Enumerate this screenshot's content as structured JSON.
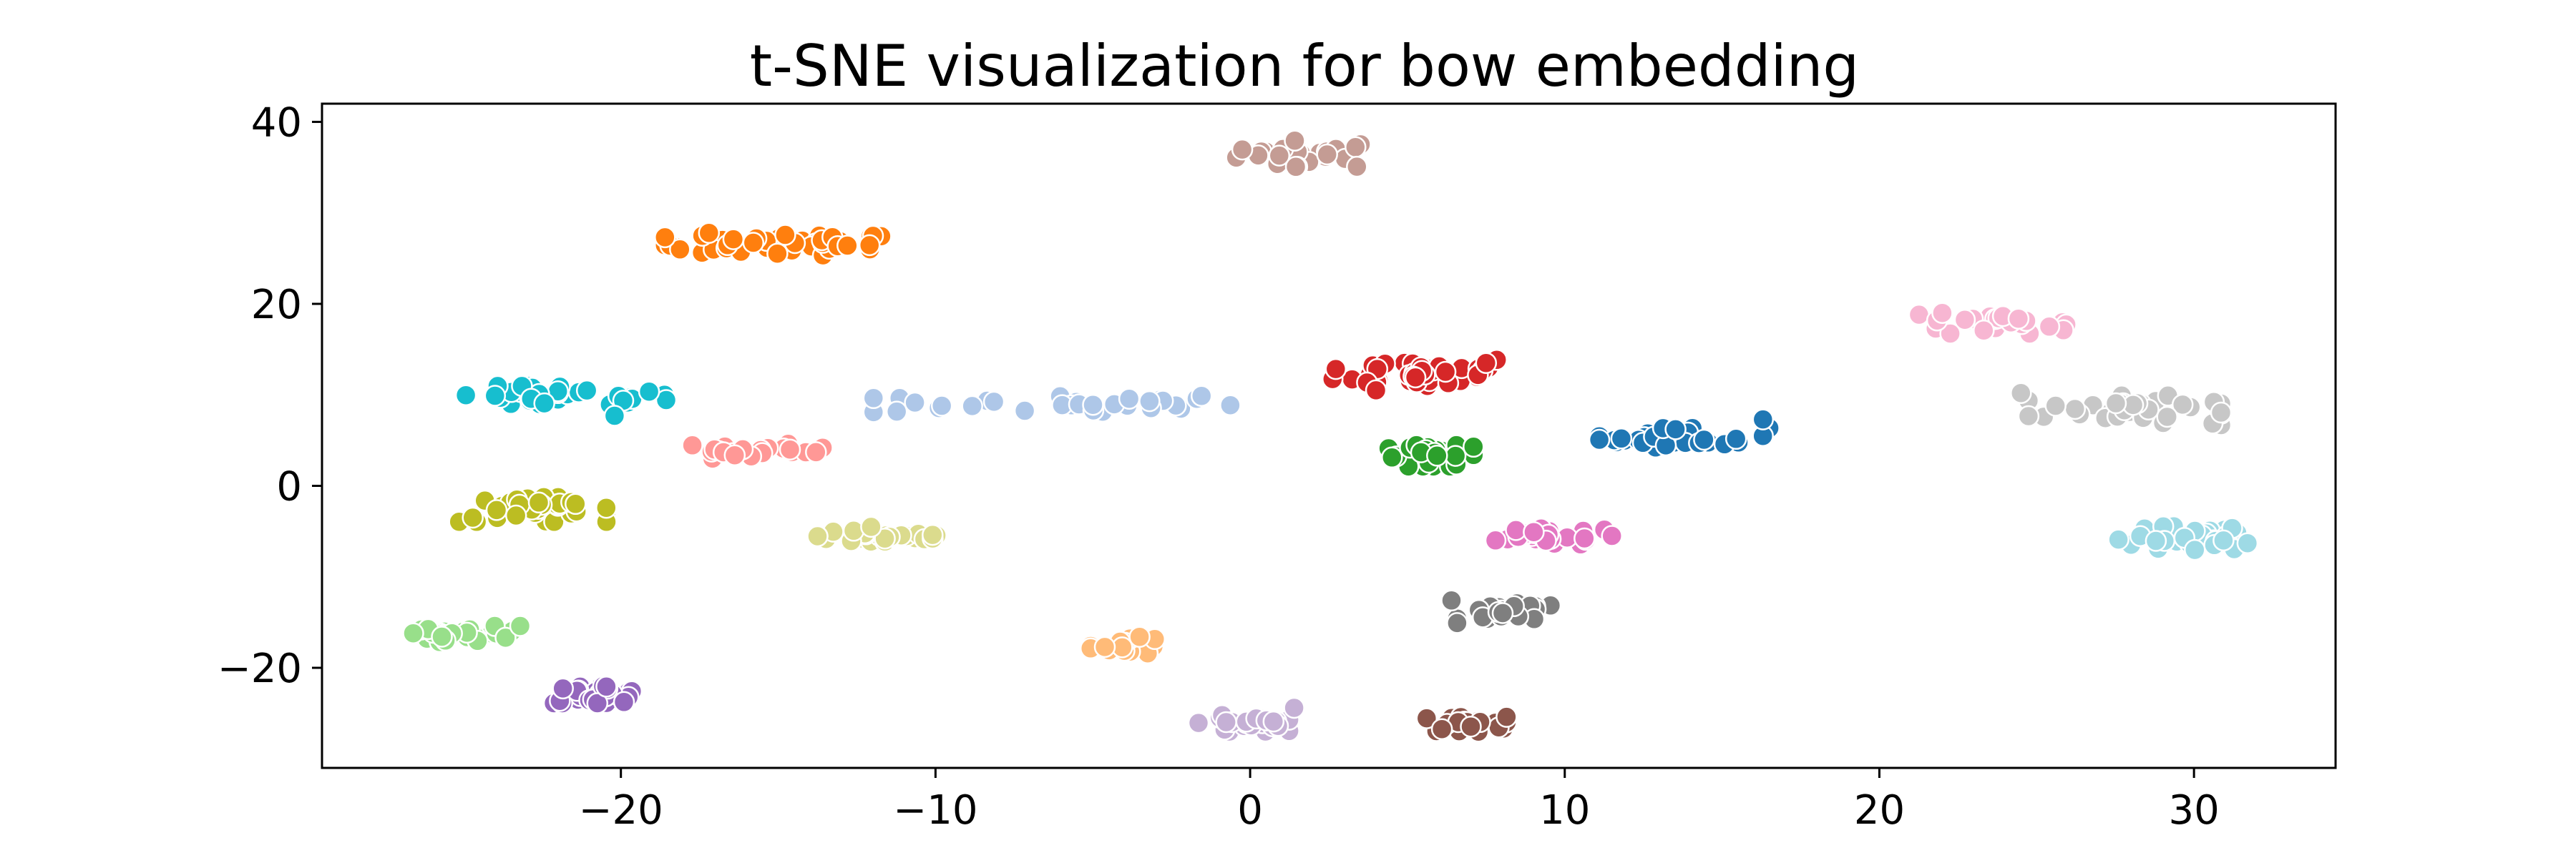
{
  "chart_data": {
    "type": "scatter",
    "title": "t-SNE visualization for bow embedding",
    "xlabel": "",
    "ylabel": "",
    "xlim": [
      -29.5,
      34.5
    ],
    "ylim": [
      -31,
      42
    ],
    "xticks": [
      -20,
      -10,
      0,
      10,
      20,
      30
    ],
    "xtick_labels": [
      "−20",
      "−10",
      "0",
      "10",
      "20",
      "30"
    ],
    "yticks": [
      -20,
      0,
      20,
      40
    ],
    "ytick_labels": [
      "−20",
      "0",
      "20",
      "40"
    ],
    "grid": false,
    "legend": "none",
    "clusters": [
      {
        "color": "#c49c94",
        "cx": 1.9,
        "cy": 36.5,
        "sx": 2.6,
        "sy": 1.6,
        "n": 26
      },
      {
        "color": "#ff7f0e",
        "cx": -15.0,
        "cy": 26.5,
        "sx": 4.0,
        "sy": 1.3,
        "n": 40
      },
      {
        "color": "#17becf",
        "cx": -21.8,
        "cy": 9.8,
        "sx": 3.6,
        "sy": 1.3,
        "n": 34
      },
      {
        "color": "#aec7e8",
        "cx": -6.3,
        "cy": 9.0,
        "sx": 6.3,
        "sy": 1.2,
        "n": 30
      },
      {
        "color": "#d62728",
        "cx": 5.5,
        "cy": 12.5,
        "sx": 3.2,
        "sy": 1.8,
        "n": 40
      },
      {
        "color": "#f7b6d2",
        "cx": 23.6,
        "cy": 18.0,
        "sx": 2.6,
        "sy": 1.4,
        "n": 22
      },
      {
        "color": "#c7c7c7",
        "cx": 27.8,
        "cy": 8.3,
        "sx": 3.4,
        "sy": 1.8,
        "n": 36
      },
      {
        "color": "#1f77b4",
        "cx": 13.8,
        "cy": 5.3,
        "sx": 3.0,
        "sy": 1.2,
        "n": 30
      },
      {
        "color": "#ff9896",
        "cx": -15.8,
        "cy": 3.8,
        "sx": 2.5,
        "sy": 0.9,
        "n": 20
      },
      {
        "color": "#2ca02c",
        "cx": 5.8,
        "cy": 3.3,
        "sx": 1.6,
        "sy": 1.3,
        "n": 26
      },
      {
        "color": "#bcbd22",
        "cx": -22.8,
        "cy": -2.6,
        "sx": 2.6,
        "sy": 1.5,
        "n": 34
      },
      {
        "color": "#dbdb8d",
        "cx": -11.5,
        "cy": -5.5,
        "sx": 2.5,
        "sy": 1.1,
        "n": 30
      },
      {
        "color": "#e377c2",
        "cx": 9.5,
        "cy": -5.6,
        "sx": 2.2,
        "sy": 1.0,
        "n": 24
      },
      {
        "color": "#9edae5",
        "cx": 29.8,
        "cy": -5.8,
        "sx": 2.0,
        "sy": 1.5,
        "n": 34
      },
      {
        "color": "#7f7f7f",
        "cx": 8.2,
        "cy": -14.0,
        "sx": 1.8,
        "sy": 1.2,
        "n": 24
      },
      {
        "color": "#98df8a",
        "cx": -24.9,
        "cy": -16.3,
        "sx": 1.6,
        "sy": 1.0,
        "n": 24
      },
      {
        "color": "#ffbb78",
        "cx": -3.9,
        "cy": -17.5,
        "sx": 1.3,
        "sy": 1.0,
        "n": 20
      },
      {
        "color": "#9467bd",
        "cx": -20.8,
        "cy": -22.9,
        "sx": 1.6,
        "sy": 1.1,
        "n": 28
      },
      {
        "color": "#c5b0d5",
        "cx": -0.2,
        "cy": -26.1,
        "sx": 1.6,
        "sy": 1.0,
        "n": 24
      },
      {
        "color": "#8c564b",
        "cx": 6.8,
        "cy": -26.2,
        "sx": 1.5,
        "sy": 0.9,
        "n": 26
      }
    ],
    "outliers": [
      {
        "color": "#1f77b4",
        "x": 16.3,
        "y": 7.3
      },
      {
        "color": "#1f77b4",
        "x": 11.8,
        "y": 5.2
      },
      {
        "color": "#d62728",
        "x": 7.5,
        "y": 13.5
      },
      {
        "color": "#d62728",
        "x": 4.0,
        "y": 10.5
      },
      {
        "color": "#17becf",
        "x": -20.2,
        "y": 7.7
      },
      {
        "color": "#17becf",
        "x": -24.0,
        "y": 9.9
      },
      {
        "color": "#aec7e8",
        "x": -9.8,
        "y": 8.8
      },
      {
        "color": "#aec7e8",
        "x": -3.2,
        "y": 9.3
      },
      {
        "color": "#c7c7c7",
        "x": 24.5,
        "y": 10.2
      },
      {
        "color": "#c7c7c7",
        "x": 25.6,
        "y": 8.8
      },
      {
        "color": "#f7b6d2",
        "x": 25.4,
        "y": 17.5
      },
      {
        "color": "#f7b6d2",
        "x": 22.0,
        "y": 19.0
      },
      {
        "color": "#9edae5",
        "x": 27.6,
        "y": -5.9
      },
      {
        "color": "#9edae5",
        "x": 31.7,
        "y": -6.3
      },
      {
        "color": "#e377c2",
        "x": 11.5,
        "y": -5.5
      },
      {
        "color": "#e377c2",
        "x": 7.8,
        "y": -6.0
      },
      {
        "color": "#ff7f0e",
        "x": -17.2,
        "y": 27.8
      },
      {
        "color": "#ff7f0e",
        "x": -12.8,
        "y": 26.4
      },
      {
        "color": "#2ca02c",
        "x": 7.1,
        "y": 4.3
      },
      {
        "color": "#c5b0d5",
        "x": 1.4,
        "y": -24.4
      },
      {
        "color": "#98df8a",
        "x": -26.6,
        "y": -16.2
      },
      {
        "color": "#98df8a",
        "x": -23.2,
        "y": -15.4
      },
      {
        "color": "#7f7f7f",
        "x": 6.4,
        "y": -12.6
      },
      {
        "color": "#ff9896",
        "x": -13.8,
        "y": 3.7
      }
    ]
  }
}
